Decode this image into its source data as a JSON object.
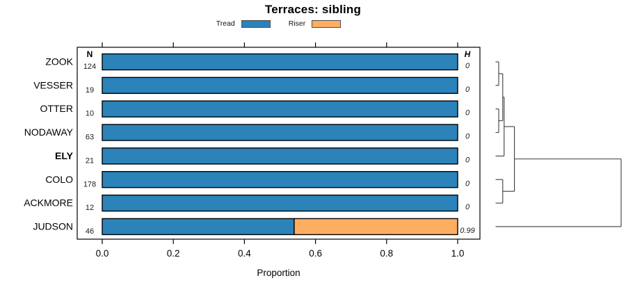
{
  "chart_data": {
    "type": "bar",
    "orientation": "horizontal",
    "stacked": true,
    "title": "Terraces: sibling",
    "xlabel": "Proportion",
    "xlim": [
      0,
      1
    ],
    "xtick_labels": [
      "0.0",
      "0.2",
      "0.4",
      "0.6",
      "0.8",
      "1.0"
    ],
    "xtick_values": [
      0.0,
      0.2,
      0.4,
      0.6,
      0.8,
      1.0
    ],
    "grid": false,
    "legend_position": "top",
    "categories": [
      "ZOOK",
      "VESSER",
      "OTTER",
      "NODAWAY",
      "ELY",
      "COLO",
      "ACKMORE",
      "JUDSON"
    ],
    "bold_category": "ELY",
    "columns": {
      "left_header": "N",
      "right_header": "H"
    },
    "n_values": [
      "124",
      "19",
      "10",
      "63",
      "21",
      "178",
      "12",
      "46"
    ],
    "h_values": [
      "0",
      "0",
      "0",
      "0",
      "0",
      "0",
      "0",
      "0.99"
    ],
    "series": [
      {
        "name": "Tread",
        "color": "#2B83BA",
        "values": [
          1,
          1,
          1,
          1,
          1,
          1,
          1,
          0.54
        ]
      },
      {
        "name": "Riser",
        "color": "#FDAE61",
        "values": [
          0,
          0,
          0,
          0,
          0,
          0,
          0,
          0.46
        ]
      }
    ],
    "dendrogram": {
      "side": "right",
      "height_scale": "relative, root = 1",
      "merges": [
        {
          "a": "ZOOK",
          "b": "VESSER",
          "height": 0.025
        },
        {
          "a": "OTTER",
          "b": "NODAWAY",
          "height": 0.025
        },
        {
          "a": "merge-0",
          "b": "merge-1",
          "height": 0.057
        },
        {
          "a": "merge-2",
          "b": "ELY",
          "height": 0.068
        },
        {
          "a": "COLO",
          "b": "ACKMORE",
          "height": 0.057
        },
        {
          "a": "merge-3",
          "b": "merge-4",
          "height": 0.15
        },
        {
          "a": "merge-5",
          "b": "JUDSON",
          "height": 1.0
        }
      ]
    },
    "colors": {
      "tread": "#2B83BA",
      "riser": "#FDAE61",
      "bar_border": "#000000",
      "axis": "#000000",
      "dendrogram_line": "#3c3c3c"
    }
  }
}
